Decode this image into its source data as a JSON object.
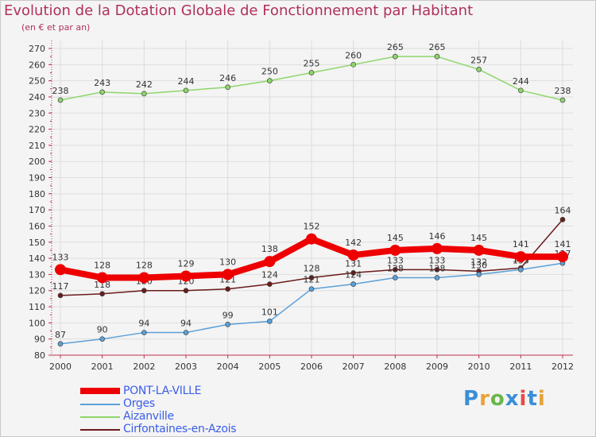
{
  "header": {
    "title": "Evolution de la Dotation Globale de Fonctionnement par Habitant",
    "subtitle": "(en € et par an)"
  },
  "logo": {
    "text": "Proxiti",
    "letter_colors": [
      "#3a8fd8",
      "#e8a13a",
      "#6ab64a",
      "#3a8fd8",
      "#e84a4a",
      "#3a8fd8",
      "#e8a13a"
    ]
  },
  "chart_data": {
    "type": "line",
    "title": "Evolution de la Dotation Globale de Fonctionnement par Habitant",
    "subtitle": "(en € et par an)",
    "x": [
      "2000",
      "2001",
      "2002",
      "2003",
      "2004",
      "2005",
      "2006",
      "2007",
      "2008",
      "2009",
      "2010",
      "2011",
      "2012"
    ],
    "ylim": [
      80,
      270
    ],
    "yticks": [
      80,
      90,
      100,
      110,
      120,
      130,
      140,
      150,
      160,
      170,
      180,
      190,
      200,
      210,
      220,
      230,
      240,
      250,
      260,
      270
    ],
    "grid": true,
    "legend_position": "bottom-left",
    "series": [
      {
        "name": "PONT-LA-VILLE",
        "color": "#ee0000",
        "values": [
          133,
          128,
          128,
          129,
          130,
          138,
          152,
          142,
          145,
          146,
          145,
          141,
          141
        ]
      },
      {
        "name": "Orges",
        "color": "#5aa0d8",
        "values": [
          87,
          90,
          94,
          94,
          99,
          101,
          121,
          124,
          128,
          128,
          130,
          133,
          137
        ]
      },
      {
        "name": "Aizanville",
        "color": "#8ed66a",
        "values": [
          238,
          243,
          242,
          244,
          246,
          250,
          255,
          260,
          265,
          265,
          257,
          244,
          238
        ]
      },
      {
        "name": "Cirfontaines-en-Azois",
        "color": "#6b1a1a",
        "values": [
          117,
          118,
          120,
          120,
          121,
          124,
          128,
          131,
          133,
          133,
          132,
          134,
          164
        ]
      }
    ]
  }
}
